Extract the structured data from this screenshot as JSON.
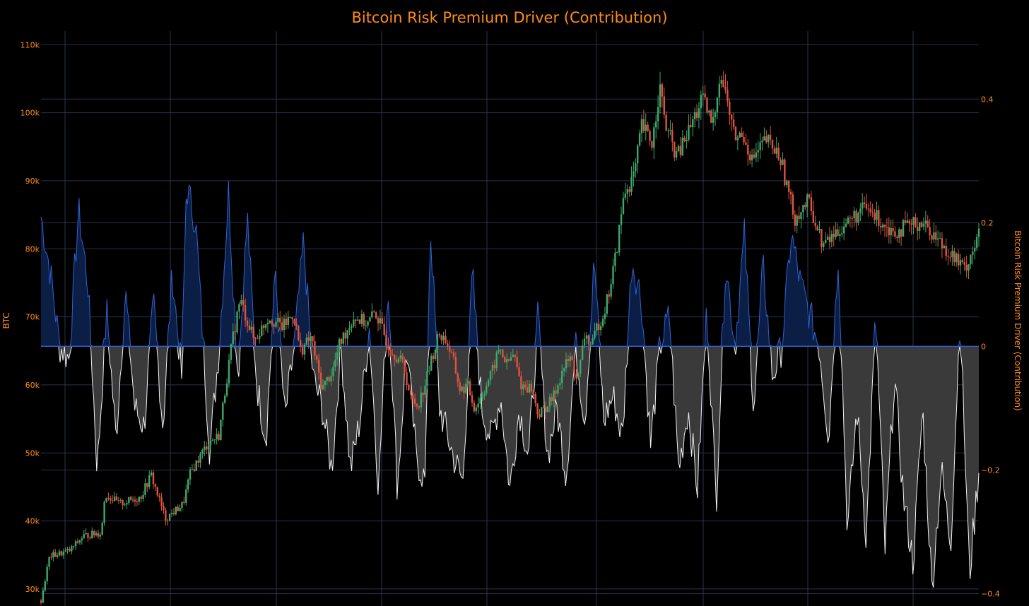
{
  "chart_data": {
    "type": "candlestick+area",
    "title": "Bitcoin Risk Premium Driver (Contribution)",
    "y_left_label": "BTC",
    "y_right_label": "Bitcoin Risk Premium Driver (Contribution)",
    "y_left_ticks": [
      "30k",
      "40k",
      "50k",
      "60k",
      "70k",
      "80k",
      "90k",
      "100k",
      "110k"
    ],
    "y_left_tick_values": [
      30000,
      40000,
      50000,
      60000,
      70000,
      80000,
      90000,
      100000,
      110000
    ],
    "y_right_ticks": [
      "0.4",
      "0.2",
      "0",
      "−0.2",
      "−0.4"
    ],
    "y_right_tick_values": [
      0.4,
      0.2,
      0,
      -0.2,
      -0.4
    ],
    "y_left_range": [
      27500,
      112000
    ],
    "y_right_range": [
      -0.42,
      0.51
    ],
    "grid": true,
    "colors": {
      "background": "#000000",
      "text": "#ff8c1a",
      "grid": "#2a3348",
      "up_candle": "#3fa86b",
      "down_candle": "#e0533f",
      "positive_line": "#2f63d6",
      "positive_fill": "#0b1e45",
      "negative_line": "#f2f2f2",
      "negative_fill": "#3a3a3a"
    },
    "btc_anchors": [
      [
        0,
        28300
      ],
      [
        0.012,
        34800
      ],
      [
        0.04,
        35600
      ],
      [
        0.06,
        37800
      ],
      [
        0.085,
        38300
      ],
      [
        0.09,
        44000
      ],
      [
        0.11,
        42500
      ],
      [
        0.14,
        43500
      ],
      [
        0.155,
        46800
      ],
      [
        0.175,
        40300
      ],
      [
        0.2,
        42500
      ],
      [
        0.21,
        47000
      ],
      [
        0.235,
        51500
      ],
      [
        0.25,
        52500
      ],
      [
        0.26,
        60000
      ],
      [
        0.27,
        67000
      ],
      [
        0.28,
        72500
      ],
      [
        0.3,
        66500
      ],
      [
        0.32,
        70000
      ],
      [
        0.34,
        68500
      ],
      [
        0.355,
        70500
      ],
      [
        0.365,
        65000
      ],
      [
        0.38,
        67000
      ],
      [
        0.395,
        59500
      ],
      [
        0.41,
        62000
      ],
      [
        0.42,
        66000
      ],
      [
        0.44,
        70000
      ],
      [
        0.46,
        69000
      ],
      [
        0.47,
        70800
      ],
      [
        0.49,
        65500
      ],
      [
        0.51,
        63000
      ],
      [
        0.52,
        58000
      ],
      [
        0.53,
        57000
      ],
      [
        0.54,
        60000
      ],
      [
        0.55,
        64000
      ],
      [
        0.56,
        67500
      ],
      [
        0.57,
        66500
      ],
      [
        0.58,
        63500
      ],
      [
        0.59,
        59000
      ],
      [
        0.6,
        60000
      ],
      [
        0.61,
        56500
      ],
      [
        0.62,
        58500
      ],
      [
        0.635,
        62000
      ],
      [
        0.645,
        65500
      ],
      [
        0.655,
        63000
      ],
      [
        0.665,
        64500
      ],
      [
        0.675,
        60000
      ],
      [
        0.69,
        59500
      ],
      [
        0.7,
        55500
      ],
      [
        0.72,
        58000
      ],
      [
        0.735,
        62500
      ],
      [
        0.745,
        64000
      ],
      [
        0.755,
        60500
      ],
      [
        0.765,
        67500
      ],
      [
        0.775,
        65500
      ],
      [
        0.782,
        68500
      ],
      [
        0.79,
        70000
      ],
      [
        0.8,
        74000
      ],
      [
        0.81,
        80000
      ],
      [
        0.82,
        88000
      ],
      [
        0.835,
        91000
      ],
      [
        0.845,
        98000
      ],
      [
        0.86,
        95500
      ],
      [
        0.87,
        104000
      ],
      [
        0.88,
        97500
      ],
      [
        0.895,
        93500
      ],
      [
        0.91,
        97000
      ],
      [
        0.93,
        102000
      ],
      [
        0.945,
        98000
      ],
      [
        0.955,
        106000
      ],
      [
        0.965,
        102000
      ],
      [
        0.975,
        96500
      ],
      [
        0.99,
        96500
      ],
      [
        1.0,
        93000
      ]
    ],
    "btc_anchors_part2": [
      [
        0,
        93000
      ],
      [
        0.02,
        96000
      ],
      [
        0.04,
        93500
      ],
      [
        0.06,
        84500
      ],
      [
        0.08,
        87000
      ],
      [
        0.1,
        80500
      ],
      [
        0.13,
        83500
      ],
      [
        0.16,
        86000
      ],
      [
        0.2,
        82500
      ],
      [
        0.24,
        84000
      ],
      [
        0.27,
        80500
      ],
      [
        0.3,
        77000
      ],
      [
        0.32,
        82000
      ]
    ],
    "contrib_anchors": [
      [
        0,
        0.21
      ],
      [
        0.01,
        0.12
      ],
      [
        0.02,
        0.0
      ],
      [
        0.03,
        -0.02
      ],
      [
        0.04,
        0.22
      ],
      [
        0.05,
        0.1
      ],
      [
        0.06,
        -0.2
      ],
      [
        0.07,
        0.06
      ],
      [
        0.08,
        -0.15
      ],
      [
        0.09,
        0.09
      ],
      [
        0.1,
        -0.1
      ],
      [
        0.11,
        -0.13
      ],
      [
        0.12,
        0.07
      ],
      [
        0.13,
        -0.13
      ],
      [
        0.14,
        0.12
      ],
      [
        0.15,
        -0.05
      ],
      [
        0.155,
        0.26
      ],
      [
        0.165,
        0.2
      ],
      [
        0.18,
        -0.17
      ],
      [
        0.19,
        0.0
      ],
      [
        0.2,
        0.25
      ],
      [
        0.21,
        -0.05
      ],
      [
        0.22,
        0.21
      ],
      [
        0.23,
        -0.06
      ],
      [
        0.24,
        -0.15
      ],
      [
        0.25,
        0.12
      ],
      [
        0.26,
        -0.12
      ],
      [
        0.27,
        0.0
      ],
      [
        0.28,
        0.17
      ],
      [
        0.29,
        -0.05
      ],
      [
        0.3,
        -0.1
      ],
      [
        0.31,
        -0.2
      ],
      [
        0.32,
        0.0
      ],
      [
        0.33,
        -0.2
      ],
      [
        0.34,
        -0.12
      ],
      [
        0.35,
        0.03
      ],
      [
        0.36,
        -0.23
      ],
      [
        0.37,
        0.1
      ],
      [
        0.38,
        -0.23
      ],
      [
        0.39,
        0.0
      ],
      [
        0.4,
        -0.18
      ],
      [
        0.41,
        -0.22
      ],
      [
        0.415,
        0.2
      ],
      [
        0.425,
        -0.1
      ],
      [
        0.44,
        -0.18
      ],
      [
        0.45,
        -0.22
      ],
      [
        0.46,
        0.12
      ],
      [
        0.47,
        -0.1
      ],
      [
        0.48,
        -0.15
      ],
      [
        0.49,
        -0.08
      ],
      [
        0.5,
        -0.23
      ],
      [
        0.51,
        -0.1
      ],
      [
        0.52,
        -0.18
      ],
      [
        0.53,
        0.05
      ],
      [
        0.54,
        -0.18
      ],
      [
        0.55,
        -0.1
      ],
      [
        0.56,
        -0.21
      ],
      [
        0.57,
        0.0
      ],
      [
        0.58,
        -0.12
      ],
      [
        0.59,
        0.14
      ],
      [
        0.6,
        -0.12
      ],
      [
        0.61,
        -0.08
      ],
      [
        0.62,
        -0.15
      ],
      [
        0.63,
        0.14
      ],
      [
        0.64,
        0.08
      ],
      [
        0.65,
        -0.16
      ],
      [
        0.66,
        0.0
      ],
      [
        0.67,
        0.05
      ],
      [
        0.68,
        -0.2
      ],
      [
        0.69,
        -0.1
      ],
      [
        0.7,
        -0.23
      ],
      [
        0.71,
        0.06
      ],
      [
        0.72,
        -0.25
      ],
      [
        0.73,
        0.14
      ],
      [
        0.74,
        0.0
      ],
      [
        0.75,
        0.18
      ],
      [
        0.76,
        -0.1
      ],
      [
        0.77,
        0.13
      ],
      [
        0.78,
        -0.05
      ],
      [
        0.79,
        0.0
      ],
      [
        0.8,
        0.18
      ],
      [
        0.81,
        0.1
      ],
      [
        0.82,
        0.05
      ],
      [
        0.83,
        0.0
      ],
      [
        0.84,
        -0.15
      ],
      [
        0.85,
        0.15
      ],
      [
        0.86,
        -0.3
      ],
      [
        0.87,
        -0.1
      ],
      [
        0.88,
        -0.31
      ],
      [
        0.89,
        0.05
      ],
      [
        0.9,
        -0.33
      ],
      [
        0.91,
        -0.05
      ],
      [
        0.92,
        -0.25
      ],
      [
        0.93,
        -0.35
      ],
      [
        0.94,
        -0.1
      ],
      [
        0.95,
        -0.39
      ],
      [
        0.96,
        -0.2
      ],
      [
        0.97,
        -0.32
      ],
      [
        0.98,
        0.05
      ],
      [
        0.99,
        -0.37
      ],
      [
        1.0,
        -0.2
      ]
    ]
  }
}
